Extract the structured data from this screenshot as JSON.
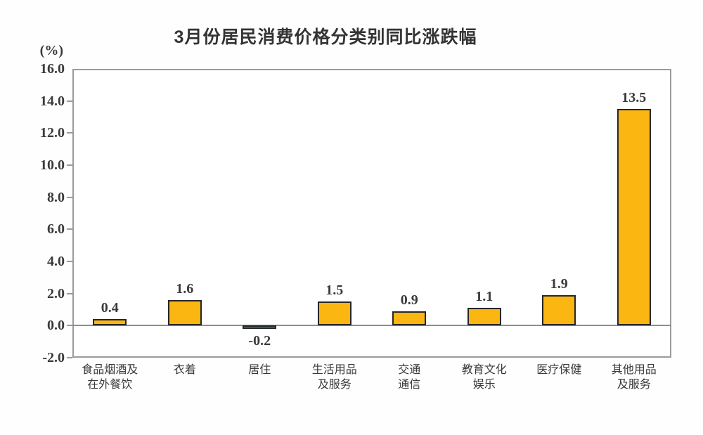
{
  "chart_data": {
    "type": "bar",
    "title": "3月份居民消费价格分类别同比涨跌幅",
    "unit_label": "(%)",
    "categories": [
      [
        "食品烟酒及",
        "在外餐饮"
      ],
      [
        "衣着"
      ],
      [
        "居住"
      ],
      [
        "生活用品",
        "及服务"
      ],
      [
        "交通",
        "通信"
      ],
      [
        "教育文化",
        "娱乐"
      ],
      [
        "医疗保健"
      ],
      [
        "其他用品",
        "及服务"
      ]
    ],
    "values": [
      0.4,
      1.6,
      -0.2,
      1.5,
      0.9,
      1.1,
      1.9,
      13.5
    ],
    "value_labels": [
      "0.4",
      "1.6",
      "-0.2",
      "1.5",
      "0.9",
      "1.1",
      "1.9",
      "13.5"
    ],
    "ylim": [
      -2.0,
      16.0
    ],
    "yticks": [
      "16.0",
      "14.0",
      "12.0",
      "10.0",
      "8.0",
      "6.0",
      "4.0",
      "2.0",
      "0.0",
      "-2.0"
    ],
    "grid": false,
    "legend": "none",
    "xlabel": "",
    "ylabel": "(%)",
    "colors": {
      "bar_positive": "#FBB612",
      "bar_negative": "#1E9CD2",
      "bar_border": "#262626",
      "frame": "#9B9B9B",
      "zero_line": "#8F8F8F",
      "text": "#3A3A3A"
    }
  }
}
